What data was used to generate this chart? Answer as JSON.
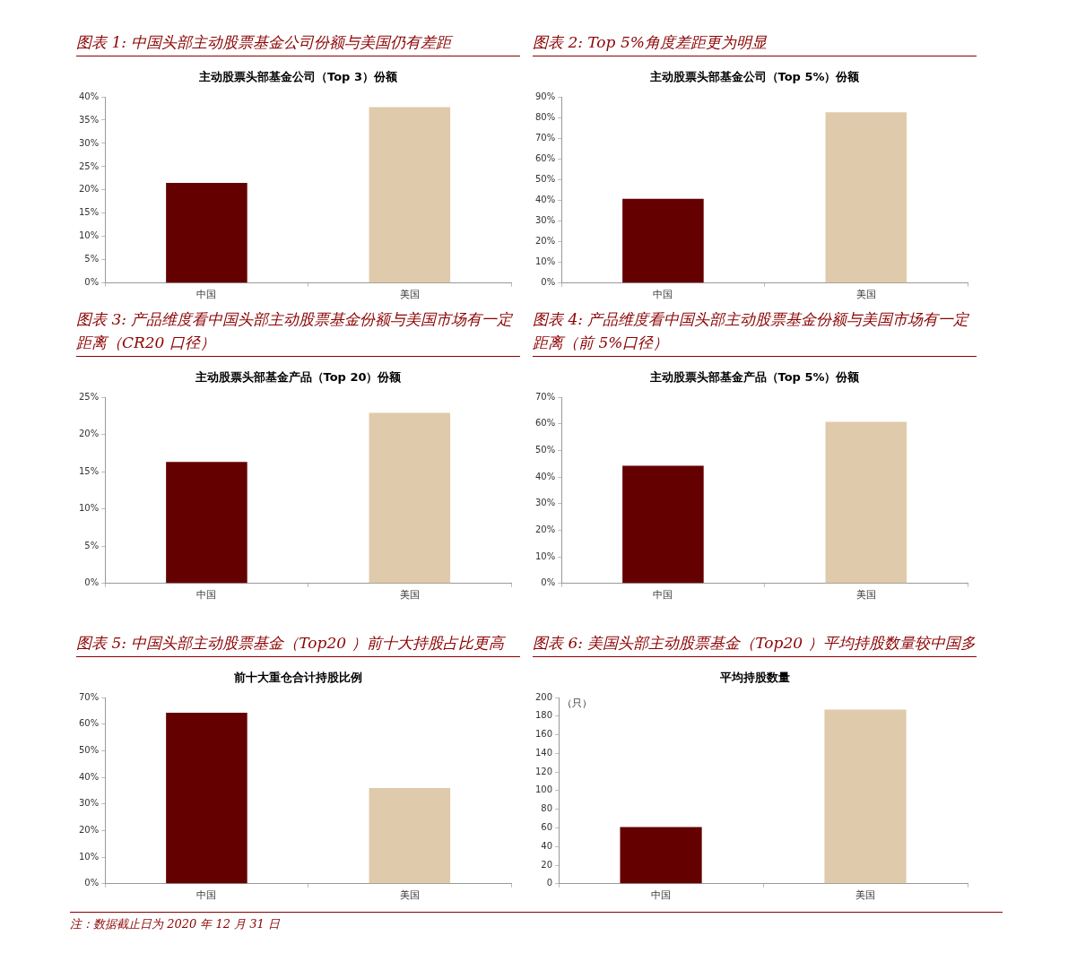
{
  "chart_data": [
    {
      "type": "bar",
      "title": "图表 1:  中国头部主动股票基金公司份额与美国仍有差距",
      "subtitle": "主动股票头部基金公司（Top 3）份额",
      "categories": [
        "中国",
        "美国"
      ],
      "values": [
        21.5,
        37.8
      ],
      "colors": [
        "#640000",
        "#dfcaab"
      ],
      "ylim": [
        0,
        40
      ],
      "yticks": [
        {
          "value": 0,
          "label": "0%"
        },
        {
          "value": 5,
          "label": "5%"
        },
        {
          "value": 10,
          "label": "10%"
        },
        {
          "value": 15,
          "label": "15%"
        },
        {
          "value": 20,
          "label": "20%"
        },
        {
          "value": 25,
          "label": "25%"
        },
        {
          "value": 30,
          "label": "30%"
        },
        {
          "value": 35,
          "label": "35%"
        },
        {
          "value": 40,
          "label": "40%"
        }
      ],
      "grid": false,
      "legend": false
    },
    {
      "type": "bar",
      "title": "图表 2: Top 5%角度差距更为明显",
      "subtitle": "主动股票头部基金公司（Top 5%）份额",
      "categories": [
        "中国",
        "美国"
      ],
      "values": [
        40.7,
        82.5
      ],
      "colors": [
        "#640000",
        "#dfcaab"
      ],
      "ylim": [
        0,
        90
      ],
      "yticks": [
        {
          "value": 0,
          "label": "0%"
        },
        {
          "value": 10,
          "label": "10%"
        },
        {
          "value": 20,
          "label": "20%"
        },
        {
          "value": 30,
          "label": "30%"
        },
        {
          "value": 40,
          "label": "40%"
        },
        {
          "value": 50,
          "label": "50%"
        },
        {
          "value": 60,
          "label": "60%"
        },
        {
          "value": 70,
          "label": "70%"
        },
        {
          "value": 80,
          "label": "80%"
        },
        {
          "value": 90,
          "label": "90%"
        }
      ],
      "grid": false,
      "legend": false
    },
    {
      "type": "bar",
      "title": "图表 3:  产品维度看中国头部主动股票基金份额与美国市场有一定距离（CR20 口径）",
      "subtitle": "主动股票头部基金产品（Top 20）份额",
      "categories": [
        "中国",
        "美国"
      ],
      "values": [
        16.3,
        22.9
      ],
      "colors": [
        "#640000",
        "#dfcaab"
      ],
      "ylim": [
        0,
        25
      ],
      "yticks": [
        {
          "value": 0,
          "label": "0%"
        },
        {
          "value": 5,
          "label": "5%"
        },
        {
          "value": 10,
          "label": "10%"
        },
        {
          "value": 15,
          "label": "15%"
        },
        {
          "value": 20,
          "label": "20%"
        },
        {
          "value": 25,
          "label": "25%"
        }
      ],
      "grid": false,
      "legend": false
    },
    {
      "type": "bar",
      "title": "图表 4:  产品维度看中国头部主动股票基金份额与美国市场有一定距离（前 5%口径）",
      "subtitle": "主动股票头部基金产品（Top 5%）份额",
      "categories": [
        "中国",
        "美国"
      ],
      "values": [
        44.2,
        60.7
      ],
      "colors": [
        "#640000",
        "#dfcaab"
      ],
      "ylim": [
        0,
        70
      ],
      "yticks": [
        {
          "value": 0,
          "label": "0%"
        },
        {
          "value": 10,
          "label": "10%"
        },
        {
          "value": 20,
          "label": "20%"
        },
        {
          "value": 30,
          "label": "30%"
        },
        {
          "value": 40,
          "label": "40%"
        },
        {
          "value": 50,
          "label": "50%"
        },
        {
          "value": 60,
          "label": "60%"
        },
        {
          "value": 70,
          "label": "70%"
        }
      ],
      "grid": false,
      "legend": false
    },
    {
      "type": "bar",
      "title": "图表 5:  中国头部主动股票基金（Top20 ）前十大持股占比更高",
      "subtitle": "前十大重仓合计持股比例",
      "categories": [
        "中国",
        "美国"
      ],
      "values": [
        64.3,
        36.0
      ],
      "colors": [
        "#640000",
        "#dfcaab"
      ],
      "ylim": [
        0,
        70
      ],
      "yticks": [
        {
          "value": 0,
          "label": "0%"
        },
        {
          "value": 10,
          "label": "10%"
        },
        {
          "value": 20,
          "label": "20%"
        },
        {
          "value": 30,
          "label": "30%"
        },
        {
          "value": 40,
          "label": "40%"
        },
        {
          "value": 50,
          "label": "50%"
        },
        {
          "value": 60,
          "label": "60%"
        },
        {
          "value": 70,
          "label": "70%"
        }
      ],
      "grid": false,
      "legend": false
    },
    {
      "type": "bar",
      "title": "图表 6:  美国头部主动股票基金（Top20 ）平均持股数量较中国多",
      "subtitle": "平均持股数量",
      "ylabel": "（只）",
      "categories": [
        "中国",
        "美国"
      ],
      "values": [
        61,
        187
      ],
      "colors": [
        "#640000",
        "#dfcaab"
      ],
      "ylim": [
        0,
        200
      ],
      "yticks": [
        0,
        20,
        40,
        60,
        80,
        100,
        120,
        140,
        160,
        180,
        200
      ],
      "grid": false,
      "legend": false,
      "annotations": [
        "注：数据截止日为 2020 年 12 月 31 日"
      ]
    }
  ]
}
